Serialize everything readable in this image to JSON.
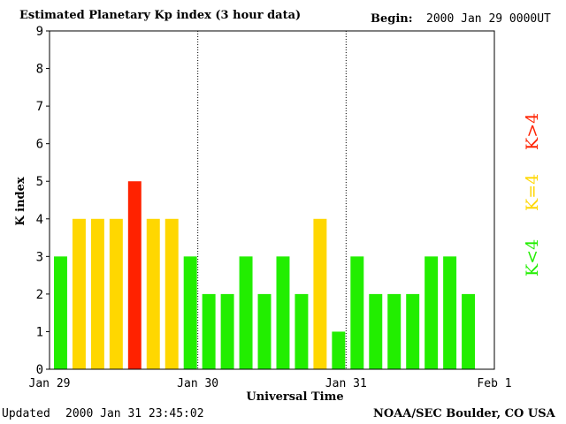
{
  "header": {
    "title": "Estimated Planetary Kp index (3 hour data)",
    "begin_label": "Begin:",
    "begin_value": "2000 Jan 29 0000UT"
  },
  "footer": {
    "updated_label": "Updated",
    "updated_value": "2000 Jan 31 23:45:02",
    "credit": "NOAA/SEC Boulder, CO USA"
  },
  "legend": {
    "low": {
      "label": "K<4",
      "color": "#22ee00"
    },
    "mid": {
      "label": "K=4",
      "color": "#ffd700"
    },
    "high": {
      "label": "K>4",
      "color": "#ff2200"
    }
  },
  "chart_data": {
    "type": "bar",
    "title": "Estimated Planetary Kp index (3 hour data)",
    "xlabel": "Universal Time",
    "ylabel": "K index",
    "ylim": [
      0,
      9
    ],
    "yticks": [
      "0",
      "1",
      "2",
      "3",
      "4",
      "5",
      "6",
      "7",
      "8",
      "9"
    ],
    "xticks": [
      "Jan 29",
      "Jan 30",
      "Jan 31",
      "Feb 1"
    ],
    "day_dividers": [
      "Jan 30",
      "Jan 31"
    ],
    "interval_hours": 3,
    "values": [
      3,
      4,
      4,
      4,
      5,
      4,
      4,
      3,
      2,
      2,
      3,
      2,
      3,
      2,
      4,
      1,
      3,
      2,
      2,
      2,
      3,
      3,
      2
    ]
  }
}
